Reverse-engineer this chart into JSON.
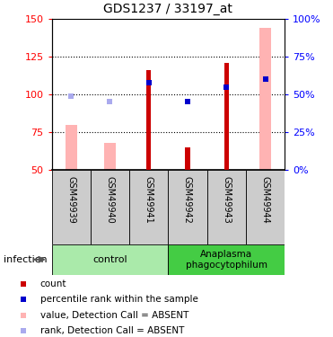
{
  "title": "GDS1237 / 33197_at",
  "samples": [
    "GSM49939",
    "GSM49940",
    "GSM49941",
    "GSM49942",
    "GSM49943",
    "GSM49944"
  ],
  "control_indices": [
    0,
    1,
    2
  ],
  "anaplasma_indices": [
    3,
    4,
    5
  ],
  "control_label": "control",
  "anaplasma_label": "Anaplasma\nphagocytophilum",
  "red_bars": [
    null,
    null,
    116,
    65,
    121,
    null
  ],
  "pink_bars": [
    80,
    68,
    null,
    null,
    null,
    144
  ],
  "blue_squares": [
    null,
    null,
    108,
    95,
    105,
    110
  ],
  "light_blue_squares": [
    99,
    95,
    null,
    null,
    null,
    null
  ],
  "red_color": "#cc0000",
  "pink_color": "#ffb3b3",
  "blue_color": "#0000cc",
  "light_blue_color": "#aaaaee",
  "ymin": 50,
  "ymax": 150,
  "yticks_left": [
    50,
    75,
    100,
    125,
    150
  ],
  "yticks_right_labels": [
    "0%",
    "25%",
    "50%",
    "75%",
    "100%"
  ],
  "yticks_right_vals": [
    50,
    75,
    100,
    125,
    150
  ],
  "dotted_lines": [
    75,
    100,
    125
  ],
  "infection_label": "infection",
  "control_color": "#aaeaaa",
  "anaplasma_color": "#44cc44",
  "sample_bg_color": "#cccccc",
  "legend_items": [
    {
      "label": "count",
      "color": "#cc0000"
    },
    {
      "label": "percentile rank within the sample",
      "color": "#0000cc"
    },
    {
      "label": "value, Detection Call = ABSENT",
      "color": "#ffb3b3"
    },
    {
      "label": "rank, Detection Call = ABSENT",
      "color": "#aaaaee"
    }
  ],
  "pink_bar_width": 0.3,
  "red_bar_width": 0.12
}
